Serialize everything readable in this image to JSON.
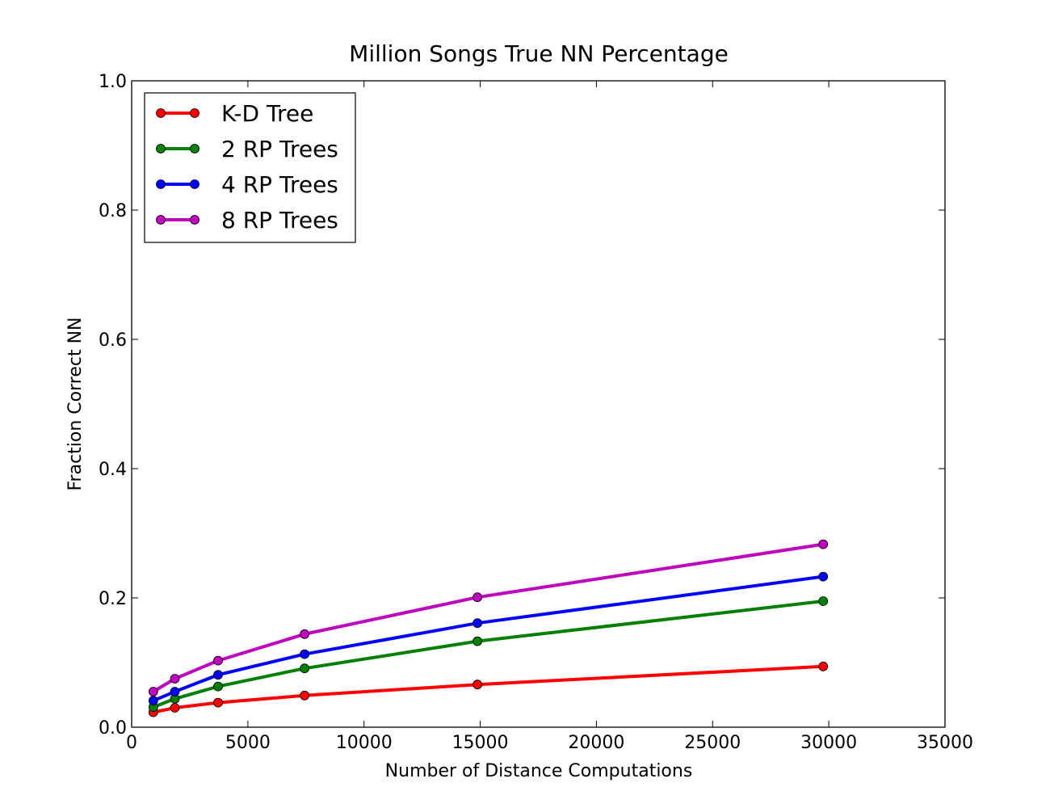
{
  "chart_data": {
    "type": "line",
    "title": "Million Songs True NN Percentage",
    "xlabel": "Number of Distance Computations",
    "ylabel": "Fraction Correct NN",
    "xlim": [
      0,
      35000
    ],
    "ylim": [
      0,
      1.0
    ],
    "x_ticks": [
      0,
      5000,
      10000,
      15000,
      20000,
      25000,
      30000,
      35000
    ],
    "y_ticks": [
      0.0,
      0.2,
      0.4,
      0.6,
      0.8,
      1.0
    ],
    "x_tick_labels": [
      "0",
      "5000",
      "10000",
      "15000",
      "20000",
      "25000",
      "30000",
      "35000"
    ],
    "y_tick_labels": [
      "0.0",
      "0.2",
      "0.4",
      "0.6",
      "0.8",
      "1.0"
    ],
    "grid": false,
    "legend_position": "top-left",
    "x": [
      930,
      1860,
      3720,
      7440,
      14880,
      29760
    ],
    "series": [
      {
        "name": "K-D Tree",
        "color": "#ff0000",
        "values": [
          0.023,
          0.03,
          0.038,
          0.049,
          0.066,
          0.094
        ]
      },
      {
        "name": "2 RP Trees",
        "color": "#008000",
        "values": [
          0.031,
          0.044,
          0.063,
          0.091,
          0.133,
          0.195
        ]
      },
      {
        "name": "4 RP Trees",
        "color": "#0000ff",
        "values": [
          0.041,
          0.055,
          0.081,
          0.113,
          0.161,
          0.233
        ]
      },
      {
        "name": "8 RP Trees",
        "color": "#bf00bf",
        "values": [
          0.055,
          0.075,
          0.103,
          0.144,
          0.201,
          0.283
        ]
      }
    ]
  }
}
